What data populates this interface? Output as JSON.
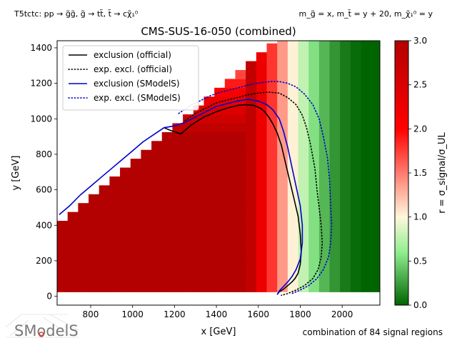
{
  "header": {
    "process_left": "T5tctc: pp → g̃g̃, g̃ → tt̃, t̃ → cχ̃₁⁰",
    "masses_right": "m_g̃ = x, m_t̃ = y + 20, m_χ̃₁⁰ = y"
  },
  "footer": {
    "combination_note": "combination of 84 signal regions",
    "logo_text": "SModelS"
  },
  "chart_data": {
    "type": "heatmap",
    "title": "CMS-SUS-16-050 (combined)",
    "xlabel": "x [GeV]",
    "ylabel": "y [GeV]",
    "xlim": [
      640,
      2180
    ],
    "ylim": [
      -50,
      1440
    ],
    "xticks": [
      800,
      1000,
      1200,
      1400,
      1600,
      1800,
      2000
    ],
    "yticks": [
      0,
      200,
      400,
      600,
      800,
      1000,
      1200,
      1400
    ],
    "grid": false,
    "colorbar": {
      "label": "r = σ_signal/σ_UL",
      "range": [
        0.0,
        3.0
      ],
      "ticks": [
        0.0,
        0.5,
        1.0,
        1.5,
        2.0,
        2.5,
        3.0
      ],
      "colors": [
        "#006400",
        "#90ee90",
        "#fff7dc",
        "#ff0000",
        "#b30000"
      ]
    },
    "legend": {
      "placement": "top-left",
      "entries": [
        {
          "label": "exclusion (official)",
          "color": "#000000",
          "style": "solid"
        },
        {
          "label": "exp. excl. (official)",
          "color": "#000000",
          "style": "dotted"
        },
        {
          "label": "exclusion (SModelS)",
          "color": "#0000cc",
          "style": "solid"
        },
        {
          "label": "exp. excl. (SModelS)",
          "color": "#0000cc",
          "style": "dotted"
        }
      ]
    },
    "heatmap": {
      "x_step": 50,
      "y_step": 50,
      "x_min": 640,
      "x_max": 2180,
      "y_min": 25,
      "y_max": 1440,
      "diagonal_offset": 220,
      "r_profile_x": [
        1550,
        1600,
        1650,
        1700,
        1750,
        1800,
        1850,
        1900,
        1950,
        2000,
        2050,
        2100
      ],
      "r_profile_v": [
        3.0,
        2.4,
        1.9,
        1.5,
        1.1,
        0.85,
        0.6,
        0.4,
        0.25,
        0.12,
        0.05,
        0.0
      ]
    },
    "series": [
      {
        "name": "exclusion (official)",
        "color": "#000000",
        "style": "solid",
        "x": [
          1150,
          1180,
          1230,
          1280,
          1340,
          1400,
          1450,
          1500,
          1540,
          1580,
          1610,
          1630,
          1650,
          1670,
          1690,
          1710,
          1730,
          1750,
          1770,
          1790,
          1800,
          1805,
          1800,
          1790,
          1775,
          1760,
          1740,
          1720,
          1700,
          1690
        ],
        "y": [
          950,
          935,
          915,
          965,
          1010,
          1040,
          1060,
          1075,
          1080,
          1075,
          1060,
          1040,
          1010,
          970,
          920,
          850,
          750,
          650,
          550,
          450,
          350,
          250,
          180,
          130,
          100,
          80,
          60,
          40,
          25,
          10
        ]
      },
      {
        "name": "exclusion (SModelS)",
        "color": "#0000cc",
        "style": "solid",
        "x": [
          650,
          700,
          750,
          800,
          850,
          900,
          950,
          1000,
          1050,
          1100,
          1150,
          1200,
          1250,
          1300,
          1350,
          1400,
          1450,
          1500,
          1550,
          1600,
          1640,
          1670,
          1700,
          1720,
          1740,
          1760,
          1780,
          1800,
          1810,
          1810,
          1800,
          1780,
          1760,
          1740,
          1720,
          1700,
          1690
        ],
        "y": [
          460,
          510,
          570,
          620,
          670,
          720,
          770,
          820,
          870,
          910,
          950,
          960,
          980,
          1010,
          1040,
          1070,
          1085,
          1100,
          1110,
          1100,
          1080,
          1050,
          1000,
          930,
          840,
          730,
          620,
          510,
          400,
          300,
          210,
          150,
          110,
          80,
          55,
          30,
          10
        ]
      },
      {
        "name": "exp. excl. (official)",
        "color": "#000000",
        "style": "dotted",
        "x": [
          1250,
          1300,
          1350,
          1400,
          1450,
          1500,
          1550,
          1600,
          1650,
          1700,
          1740,
          1780,
          1810,
          1830,
          1850,
          1870,
          1880,
          1890,
          1900,
          1905,
          1900,
          1885,
          1860,
          1820,
          1780,
          1740,
          1710
        ],
        "y": [
          990,
          1030,
          1060,
          1090,
          1105,
          1120,
          1135,
          1145,
          1150,
          1145,
          1120,
          1080,
          1020,
          950,
          850,
          720,
          600,
          500,
          400,
          300,
          220,
          150,
          100,
          60,
          35,
          15,
          5
        ]
      },
      {
        "name": "exp. excl. (SModelS)",
        "color": "#0000cc",
        "style": "dotted",
        "x": [
          1220,
          1270,
          1320,
          1370,
          1420,
          1470,
          1520,
          1570,
          1620,
          1660,
          1700,
          1740,
          1780,
          1820,
          1860,
          1890,
          1910,
          1930,
          1940,
          1945,
          1950,
          1945,
          1935,
          1910,
          1880,
          1840,
          1800,
          1760
        ],
        "y": [
          1030,
          1070,
          1100,
          1130,
          1150,
          1165,
          1180,
          1195,
          1205,
          1210,
          1210,
          1200,
          1180,
          1140,
          1080,
          1000,
          900,
          780,
          650,
          520,
          400,
          300,
          220,
          150,
          100,
          60,
          35,
          15
        ]
      }
    ]
  }
}
